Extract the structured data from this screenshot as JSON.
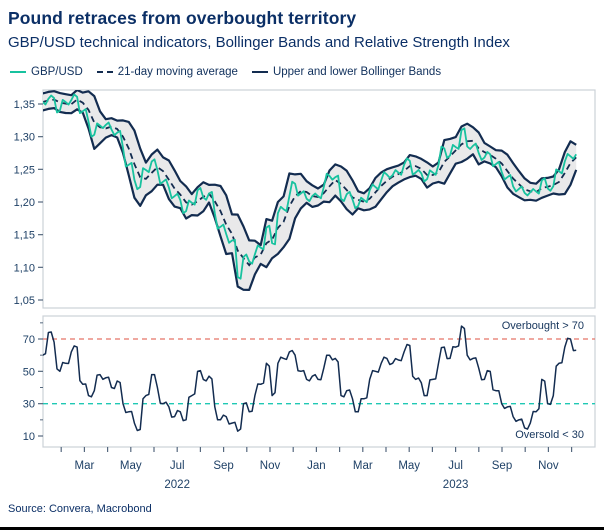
{
  "header": {
    "title": "Pound retraces from overbought territory",
    "subtitle": "GBP/USD technical indicators, Bollinger Bands and Relative Strength Index"
  },
  "legend": [
    {
      "label": "GBP/USD",
      "marker": "solid",
      "color": "#18c29f"
    },
    {
      "label": "21-day moving average",
      "marker": "dashed",
      "color": "#132c50"
    },
    {
      "label": "Upper and lower Bollinger Bands",
      "marker": "solid",
      "color": "#132c50"
    }
  ],
  "source": "Source: Convera, Macrobond",
  "colors": {
    "navy": "#132c50",
    "teal": "#18c29f",
    "band_fill": "#e9e9ea",
    "overbought_red": "#e57368",
    "oversold_teal": "#1fc8b4",
    "frame_gray": "#ccd1d7",
    "tick_gray": "#55687e",
    "label_navy": "#1e4066",
    "title_navy": "#0b2f66"
  },
  "xaxis": {
    "tick_labels": [
      "Mar",
      "May",
      "Jul",
      "Sep",
      "Nov",
      "Jan",
      "Mar",
      "May",
      "Jul",
      "Sep",
      "Nov"
    ],
    "tick_months": [
      2,
      4,
      6,
      8,
      10,
      12,
      14,
      16,
      18,
      20,
      22
    ],
    "year_labels": [
      {
        "text": "2022",
        "month": 6
      },
      {
        "text": "2023",
        "month": 18
      }
    ],
    "months_total": 24,
    "range": "Jan 2022 - Dec 2023",
    "data_start_month": 0.2,
    "data_end_month": 23.2
  },
  "chart_data": [
    {
      "type": "line",
      "panel": "price",
      "title": "GBP/USD with 21-day moving average and Bollinger Bands",
      "x": "weekly, Jan 2022 - mid Dec 2023",
      "ylim": [
        1.038,
        1.371
      ],
      "yticks": {
        "labels": [
          "1,35",
          "1,30",
          "1,25",
          "1,20",
          "1,15",
          "1,10",
          "1,05"
        ],
        "values": [
          1.35,
          1.3,
          1.25,
          1.2,
          1.15,
          1.1,
          1.05
        ]
      },
      "grid": false,
      "series": [
        {
          "name": "GBP/USD",
          "values": [
            1.353,
            1.358,
            1.359,
            1.34,
            1.353,
            1.356,
            1.361,
            1.339,
            1.323,
            1.303,
            1.317,
            1.318,
            1.311,
            1.306,
            1.283,
            1.257,
            1.234,
            1.223,
            1.249,
            1.262,
            1.249,
            1.231,
            1.222,
            1.209,
            1.203,
            1.186,
            1.199,
            1.218,
            1.207,
            1.213,
            1.183,
            1.162,
            1.151,
            1.141,
            1.085,
            1.116,
            1.109,
            1.12,
            1.13,
            1.161,
            1.137,
            1.183,
            1.189,
            1.209,
            1.228,
            1.213,
            1.205,
            1.209,
            1.209,
            1.223,
            1.24,
            1.238,
            1.205,
            1.212,
            1.204,
            1.194,
            1.203,
            1.218,
            1.223,
            1.233,
            1.242,
            1.241,
            1.245,
            1.257,
            1.263,
            1.245,
            1.244,
            1.235,
            1.245,
            1.257,
            1.282,
            1.271,
            1.284,
            1.31,
            1.285,
            1.286,
            1.275,
            1.268,
            1.273,
            1.258,
            1.246,
            1.238,
            1.224,
            1.22,
            1.214,
            1.215,
            1.216,
            1.233,
            1.221,
            1.224,
            1.247,
            1.262,
            1.27,
            1.273
          ]
        }
      ],
      "derived_series_rule": {
        "ma": "21-day (3-week) trailing moving average of GBP/USD",
        "bands": "moving average plus/minus ~2 standard deviations (Bollinger Bands)"
      }
    },
    {
      "type": "line",
      "panel": "rsi",
      "title": "Relative Strength Index",
      "ylim": [
        3,
        84
      ],
      "yticks": {
        "labels": [
          "70",
          "50",
          "30",
          "10"
        ],
        "values": [
          70,
          50,
          30,
          10
        ]
      },
      "minor_yticks": [
        80,
        60,
        40,
        20
      ],
      "reference_lines": [
        {
          "value": 70,
          "label": "Overbought > 70",
          "color": "#e57368"
        },
        {
          "value": 30,
          "label": "Oversold < 30",
          "color": "#1fc8b4"
        }
      ],
      "series": [
        {
          "name": "RSI",
          "values": [
            60,
            74,
            68,
            50,
            55,
            62,
            65,
            42,
            35,
            38,
            48,
            46,
            40,
            44,
            30,
            25,
            18,
            14,
            35,
            48,
            40,
            30,
            28,
            22,
            25,
            20,
            35,
            50,
            45,
            47,
            28,
            20,
            22,
            18,
            13,
            30,
            25,
            35,
            42,
            55,
            35,
            55,
            58,
            62,
            60,
            50,
            45,
            47,
            45,
            52,
            60,
            58,
            35,
            38,
            33,
            25,
            33,
            45,
            50,
            55,
            58,
            55,
            57,
            62,
            66,
            45,
            43,
            35,
            45,
            55,
            65,
            58,
            65,
            78,
            60,
            58,
            52,
            45,
            50,
            38,
            30,
            28,
            22,
            20,
            15,
            18,
            25,
            45,
            30,
            35,
            55,
            65,
            70,
            63
          ]
        }
      ]
    }
  ]
}
